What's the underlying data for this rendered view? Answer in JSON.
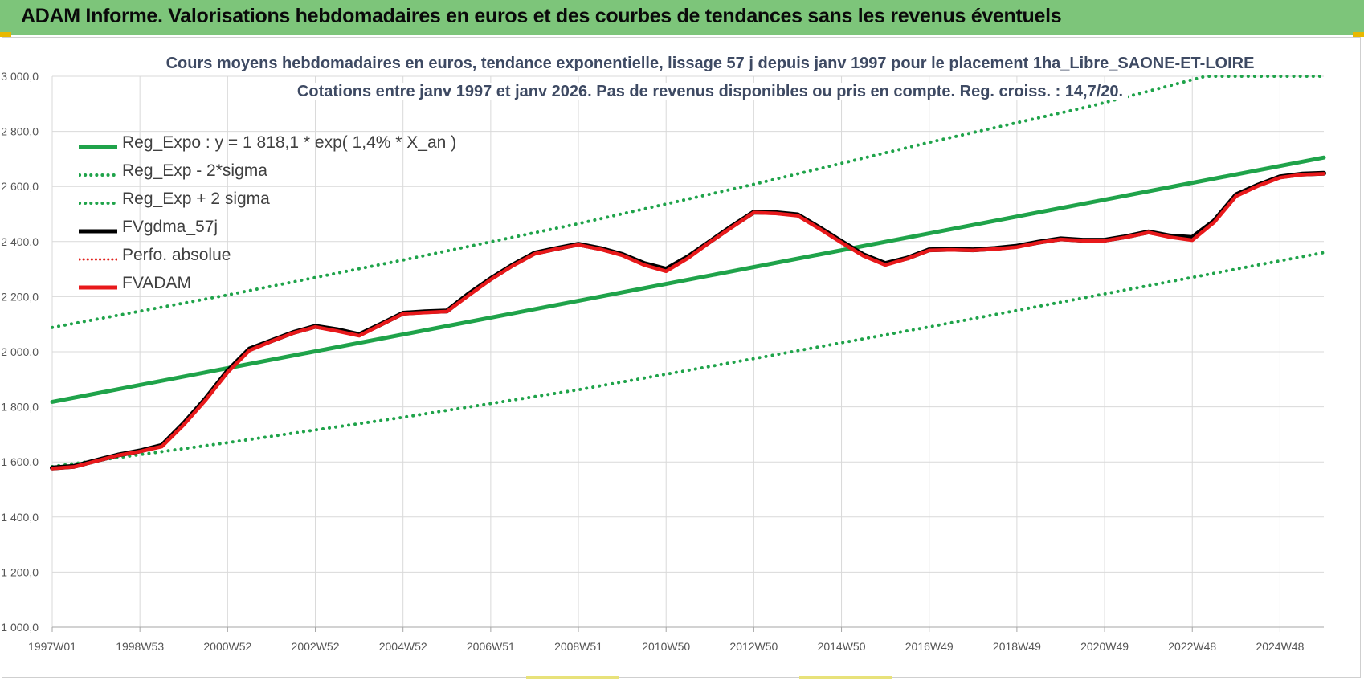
{
  "header": {
    "title": "ADAM Informe. Valorisations hebdomadaires en euros et des courbes de tendances sans les revenus éventuels"
  },
  "chart_data": {
    "type": "line",
    "title": "Cours moyens hebdomadaires en euros, tendance exponentielle, lissage 57 j depuis janv 1997  pour le placement 1ha_Libre_SAONE-ET-LOIRE",
    "subtitle": "Cotations entre janv 1997 et janv 2026. Pas de revenus disponibles ou pris en compte. Reg. croiss. : 14,7/20.",
    "xlabel": "",
    "ylabel": "",
    "xlim": [
      1997.0,
      2026.0
    ],
    "ylim": [
      1000,
      3000
    ],
    "grid": true,
    "legend_position": "top-left",
    "y_ticks": [
      {
        "v": 1000,
        "label": "1 000,0"
      },
      {
        "v": 1200,
        "label": "1 200,0"
      },
      {
        "v": 1400,
        "label": "1 400,0"
      },
      {
        "v": 1600,
        "label": "1 600,0"
      },
      {
        "v": 1800,
        "label": "1 800,0"
      },
      {
        "v": 2000,
        "label": "2 000,0"
      },
      {
        "v": 2200,
        "label": "2 200,0"
      },
      {
        "v": 2400,
        "label": "2 400,0"
      },
      {
        "v": 2600,
        "label": "2 600,0"
      },
      {
        "v": 2800,
        "label": "2 800,0"
      },
      {
        "v": 3000,
        "label": "3 000,0"
      }
    ],
    "x_ticks": [
      {
        "v": 1997.0,
        "label": "1997W01"
      },
      {
        "v": 1999.0,
        "label": "1998W53"
      },
      {
        "v": 2001.0,
        "label": "2000W52"
      },
      {
        "v": 2003.0,
        "label": "2002W52"
      },
      {
        "v": 2005.0,
        "label": "2004W52"
      },
      {
        "v": 2007.0,
        "label": "2006W51"
      },
      {
        "v": 2009.0,
        "label": "2008W51"
      },
      {
        "v": 2011.0,
        "label": "2010W50"
      },
      {
        "v": 2013.0,
        "label": "2012W50"
      },
      {
        "v": 2015.0,
        "label": "2014W50"
      },
      {
        "v": 2017.0,
        "label": "2016W49"
      },
      {
        "v": 2019.0,
        "label": "2018W49"
      },
      {
        "v": 2021.0,
        "label": "2020W49"
      },
      {
        "v": 2023.0,
        "label": "2022W48"
      },
      {
        "v": 2025.0,
        "label": "2024W48"
      }
    ],
    "series": [
      {
        "name": "Reg_Expo : y = 1 818,1 * exp( 1,4% *  X_an )",
        "color": "#1fa34a",
        "style": "solid",
        "x": [
          1997.0,
          2026.0
        ],
        "y": [
          1818,
          2705
        ]
      },
      {
        "name": "Reg_Exp - 2*sigma",
        "color": "#1fa34a",
        "style": "dotted",
        "x": [
          1997.0,
          2001.0,
          2005.0,
          2009.0,
          2013.0,
          2017.0,
          2021.0,
          2026.0
        ],
        "y": [
          1583,
          1670,
          1762,
          1862,
          1975,
          2090,
          2210,
          2360
        ]
      },
      {
        "name": "Reg_Exp + 2 sigma",
        "color": "#1fa34a",
        "style": "dotted",
        "x": [
          1997.0,
          2001.0,
          2005.0,
          2009.0,
          2013.0,
          2017.0,
          2020.7,
          2023.3,
          2026.0
        ],
        "y": [
          2088,
          2206,
          2333,
          2465,
          2608,
          2760,
          2892,
          3000,
          3000
        ]
      },
      {
        "name": "FVgdma_57j",
        "color": "#000000",
        "style": "solid",
        "x": [
          1997.0,
          1997.5,
          1998.0,
          1998.5,
          1999.0,
          1999.5,
          2000.0,
          2000.5,
          2001.0,
          2001.5,
          2002.0,
          2002.5,
          2003.0,
          2003.5,
          2004.0,
          2004.5,
          2005.0,
          2005.5,
          2006.0,
          2006.5,
          2007.0,
          2007.5,
          2008.0,
          2008.5,
          2009.0,
          2009.5,
          2010.0,
          2010.5,
          2011.0,
          2011.5,
          2012.0,
          2012.5,
          2013.0,
          2013.5,
          2014.0,
          2014.5,
          2015.0,
          2015.5,
          2016.0,
          2016.5,
          2017.0,
          2017.5,
          2018.0,
          2018.5,
          2019.0,
          2019.5,
          2020.0,
          2020.5,
          2021.0,
          2021.5,
          2022.0,
          2022.5,
          2023.0,
          2023.5,
          2024.0,
          2024.5,
          2025.0,
          2025.5,
          2026.0
        ],
        "y": [
          1578,
          1584,
          1605,
          1625,
          1640,
          1660,
          1740,
          1830,
          1930,
          2010,
          2040,
          2070,
          2092,
          2080,
          2062,
          2100,
          2140,
          2145,
          2148,
          2210,
          2265,
          2315,
          2358,
          2375,
          2390,
          2375,
          2353,
          2320,
          2300,
          2345,
          2400,
          2455,
          2507,
          2505,
          2497,
          2450,
          2400,
          2352,
          2320,
          2340,
          2370,
          2372,
          2370,
          2375,
          2383,
          2398,
          2410,
          2405,
          2405,
          2418,
          2435,
          2420,
          2415,
          2475,
          2570,
          2605,
          2635,
          2645,
          2648
        ]
      },
      {
        "name": "Perfo. absolue",
        "color": "#e0201b",
        "style": "dotted",
        "x": [],
        "y": []
      },
      {
        "name": "FVADAM",
        "color": "#e8191b",
        "style": "solid",
        "x": [
          1997.0,
          1997.5,
          1998.0,
          1998.5,
          1999.0,
          1999.5,
          2000.0,
          2000.5,
          2001.0,
          2001.5,
          2002.0,
          2002.5,
          2003.0,
          2003.5,
          2004.0,
          2004.5,
          2005.0,
          2005.5,
          2006.0,
          2006.5,
          2007.0,
          2007.5,
          2008.0,
          2008.5,
          2009.0,
          2009.5,
          2010.0,
          2010.5,
          2011.0,
          2011.5,
          2012.0,
          2012.5,
          2013.0,
          2013.5,
          2014.0,
          2014.5,
          2015.0,
          2015.5,
          2016.0,
          2016.5,
          2017.0,
          2017.5,
          2018.0,
          2018.5,
          2019.0,
          2019.5,
          2020.0,
          2020.5,
          2021.0,
          2021.5,
          2022.0,
          2022.5,
          2023.0,
          2023.5,
          2024.0,
          2024.5,
          2025.0,
          2025.5,
          2026.0
        ],
        "y": [
          1576,
          1582,
          1603,
          1624,
          1638,
          1656,
          1735,
          1825,
          1925,
          2005,
          2038,
          2068,
          2090,
          2075,
          2058,
          2098,
          2138,
          2142,
          2146,
          2205,
          2262,
          2312,
          2355,
          2373,
          2388,
          2372,
          2350,
          2315,
          2292,
          2340,
          2398,
          2452,
          2505,
          2502,
          2494,
          2446,
          2396,
          2348,
          2315,
          2338,
          2368,
          2370,
          2368,
          2373,
          2380,
          2396,
          2408,
          2403,
          2403,
          2416,
          2433,
          2416,
          2405,
          2470,
          2565,
          2602,
          2632,
          2643,
          2646
        ]
      }
    ]
  }
}
